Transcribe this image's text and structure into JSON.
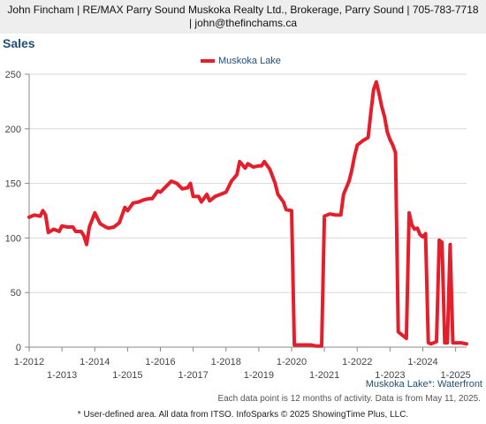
{
  "header": {
    "line1": "John Fincham | RE/MAX Parry Sound Muskoka Realty Ltd., Brokerage, Parry Sound | 705-783-7718",
    "line2": "| john@thefinchams.ca"
  },
  "title": "Sales",
  "subtitle": "Muskoka Lake*: Waterfront",
  "note": "Each data point is 12 months of activity. Data is from May 11, 2025.",
  "footer": "* User-defined area. All data from ITSO. InfoSparks © 2025 ShowingTime Plus, LLC.",
  "colors": {
    "series": "#e41e2b",
    "axis": "#888888",
    "grid": "#d8d8d8",
    "accent": "#1f4e79"
  },
  "chart_data": {
    "type": "line",
    "title": "Sales",
    "xlabel": "",
    "ylabel": "",
    "legend_position": "top-center",
    "grid": true,
    "ylim": [
      0,
      250
    ],
    "xlim": [
      "2012-01",
      "2025-05"
    ],
    "y_ticks": [
      "0",
      "50",
      "100",
      "150",
      "200",
      "250"
    ],
    "x_ticks_upper": [
      "1-2012",
      "1-2014",
      "1-2016",
      "1-2018",
      "1-2020",
      "1-2022",
      "1-2024"
    ],
    "x_ticks_lower": [
      "1-2013",
      "1-2015",
      "1-2017",
      "1-2019",
      "1-2021",
      "1-2023",
      "1-2025"
    ],
    "series": [
      {
        "name": "Muskoka Lake",
        "points": [
          [
            "2012-01",
            119
          ],
          [
            "2012-03",
            121
          ],
          [
            "2012-05",
            120
          ],
          [
            "2012-06",
            125
          ],
          [
            "2012-07",
            121
          ],
          [
            "2012-08",
            105
          ],
          [
            "2012-10",
            108
          ],
          [
            "2012-12",
            106
          ],
          [
            "2013-01",
            111
          ],
          [
            "2013-03",
            110
          ],
          [
            "2013-05",
            110
          ],
          [
            "2013-06",
            106
          ],
          [
            "2013-08",
            106
          ],
          [
            "2013-09",
            102
          ],
          [
            "2013-10",
            94
          ],
          [
            "2013-11",
            110
          ],
          [
            "2014-01",
            123
          ],
          [
            "2014-03",
            113
          ],
          [
            "2014-05",
            110
          ],
          [
            "2014-06",
            109
          ],
          [
            "2014-08",
            110
          ],
          [
            "2014-10",
            114
          ],
          [
            "2014-12",
            128
          ],
          [
            "2015-01",
            125
          ],
          [
            "2015-03",
            132
          ],
          [
            "2015-05",
            133
          ],
          [
            "2015-07",
            135
          ],
          [
            "2015-09",
            136
          ],
          [
            "2015-10",
            136
          ],
          [
            "2015-12",
            143
          ],
          [
            "2016-01",
            142
          ],
          [
            "2016-03",
            147
          ],
          [
            "2016-05",
            152
          ],
          [
            "2016-07",
            150
          ],
          [
            "2016-09",
            145
          ],
          [
            "2016-11",
            146
          ],
          [
            "2016-12",
            150
          ],
          [
            "2017-01",
            138
          ],
          [
            "2017-03",
            138
          ],
          [
            "2017-04",
            133
          ],
          [
            "2017-06",
            140
          ],
          [
            "2017-07",
            134
          ],
          [
            "2017-09",
            138
          ],
          [
            "2017-11",
            140
          ],
          [
            "2018-01",
            142
          ],
          [
            "2018-03",
            152
          ],
          [
            "2018-05",
            158
          ],
          [
            "2018-06",
            170
          ],
          [
            "2018-08",
            164
          ],
          [
            "2018-09",
            168
          ],
          [
            "2018-11",
            165
          ],
          [
            "2019-01",
            166
          ],
          [
            "2019-02",
            166
          ],
          [
            "2019-03",
            170
          ],
          [
            "2019-05",
            163
          ],
          [
            "2019-07",
            150
          ],
          [
            "2019-08",
            140
          ],
          [
            "2019-10",
            133
          ],
          [
            "2019-11",
            126
          ],
          [
            "2020-01",
            125
          ],
          [
            "2020-02",
            2
          ],
          [
            "2020-04",
            2
          ],
          [
            "2020-06",
            2
          ],
          [
            "2020-08",
            2
          ],
          [
            "2020-10",
            1
          ],
          [
            "2020-12",
            1
          ],
          [
            "2021-01",
            120
          ],
          [
            "2021-03",
            122
          ],
          [
            "2021-05",
            121
          ],
          [
            "2021-07",
            121
          ],
          [
            "2021-08",
            140
          ],
          [
            "2021-10",
            152
          ],
          [
            "2021-11",
            162
          ],
          [
            "2021-12",
            175
          ],
          [
            "2022-01",
            185
          ],
          [
            "2022-03",
            189
          ],
          [
            "2022-05",
            192
          ],
          [
            "2022-06",
            215
          ],
          [
            "2022-07",
            236
          ],
          [
            "2022-08",
            243
          ],
          [
            "2022-09",
            232
          ],
          [
            "2022-10",
            220
          ],
          [
            "2022-11",
            211
          ],
          [
            "2022-12",
            197
          ],
          [
            "2023-01",
            190
          ],
          [
            "2023-02",
            185
          ],
          [
            "2023-03",
            178
          ],
          [
            "2023-04",
            14
          ],
          [
            "2023-05",
            12
          ],
          [
            "2023-06",
            10
          ],
          [
            "2023-07",
            8
          ],
          [
            "2023-08",
            123
          ],
          [
            "2023-09",
            112
          ],
          [
            "2023-10",
            108
          ],
          [
            "2023-11",
            109
          ],
          [
            "2023-12",
            103
          ],
          [
            "2024-01",
            101
          ],
          [
            "2024-02",
            104
          ],
          [
            "2024-03",
            4
          ],
          [
            "2024-04",
            3
          ],
          [
            "2024-06",
            5
          ],
          [
            "2024-07",
            98
          ],
          [
            "2024-08",
            96
          ],
          [
            "2024-09",
            4
          ],
          [
            "2024-10",
            4
          ],
          [
            "2024-11",
            94
          ],
          [
            "2024-12",
            4
          ],
          [
            "2025-01",
            4
          ],
          [
            "2025-03",
            4
          ],
          [
            "2025-05",
            3
          ]
        ]
      }
    ]
  }
}
